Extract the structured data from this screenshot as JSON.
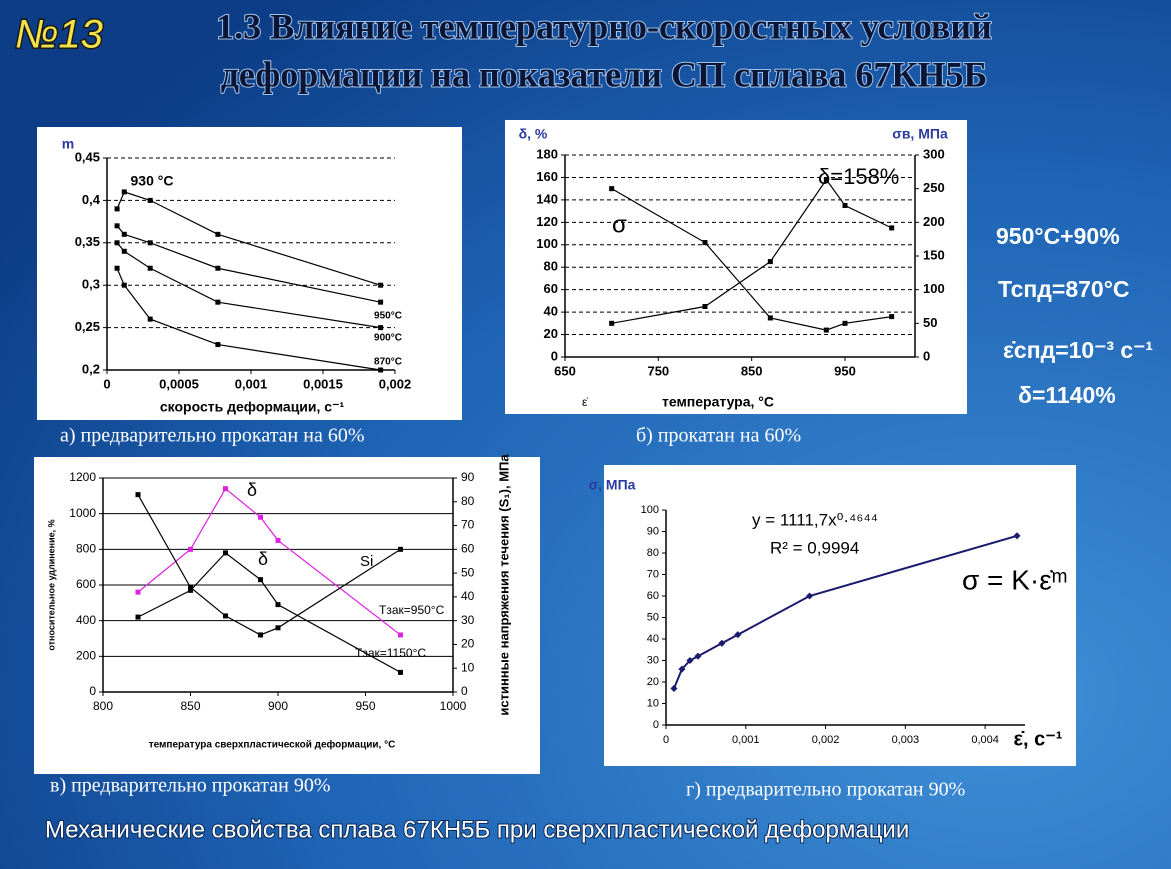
{
  "slide": {
    "number": "№13",
    "title": [
      "1.3 Влияние температурно-скоростных условий",
      "деформации на показатели СП сплава 67КН5Б"
    ],
    "notes": [
      "950°С+90%",
      "Тспд=870°С",
      "ε̇спд=10⁻³ с⁻¹",
      "δ=1140%"
    ],
    "footer": "Механические свойства сплава 67КН5Б при сверхпластической деформации"
  },
  "chart_data": [
    {
      "type": "line",
      "caption": "а) предварительно прокатан на 60%",
      "ylabel": "m",
      "xlabel": "скорость деформации, с⁻¹",
      "x": [
        7e-05,
        0.00012,
        0.0003,
        0.00077,
        0.0019
      ],
      "series": [
        {
          "name": "930 °С",
          "color": "#000000",
          "values": [
            0.39,
            0.41,
            0.4,
            0.36,
            0.3
          ]
        },
        {
          "name": "950°С",
          "color": "#000000",
          "values": [
            0.37,
            0.36,
            0.35,
            0.32,
            0.28
          ]
        },
        {
          "name": "900°С",
          "color": "#000000",
          "values": [
            0.35,
            0.34,
            0.32,
            0.28,
            0.25
          ]
        },
        {
          "name": "870°С",
          "color": "#000000",
          "values": [
            0.32,
            0.3,
            0.26,
            0.23,
            0.2
          ]
        }
      ],
      "xlim": [
        0,
        0.002
      ],
      "xticks": [
        0,
        {
          "value": 0.0005,
          "label": "0,0005"
        },
        {
          "value": 0.001,
          "label": "0,001"
        },
        {
          "value": 0.0015,
          "label": "0,0015"
        },
        {
          "value": 0.002,
          "label": "0,002"
        }
      ],
      "ylim": [
        0.2,
        0.45
      ],
      "yticks": [
        {
          "value": 0.2,
          "label": "0,2"
        },
        {
          "value": 0.25,
          "label": "0,25"
        },
        {
          "value": 0.3,
          "label": "0,3"
        },
        {
          "value": 0.35,
          "label": "0,35"
        },
        {
          "value": 0.4,
          "label": "0,4"
        },
        {
          "value": 0.45,
          "label": "0,45"
        }
      ],
      "grid": true,
      "grid_style": "dashed"
    },
    {
      "type": "line",
      "caption": "б) прокатан на 60%",
      "ylabel": "δ, %",
      "y2label": "σв, МПа",
      "xlabel": "температура, °С",
      "annotations": [
        "δ=158%",
        "σ",
        "ε̇"
      ],
      "x": [
        700,
        800,
        870,
        930,
        950,
        1000
      ],
      "series": [
        {
          "color": "#000000",
          "values": [
            30,
            45,
            85,
            158,
            135,
            115
          ]
        },
        {
          "color": "#000000",
          "axis": "y2",
          "values": [
            250,
            170,
            58,
            40,
            50,
            60
          ]
        }
      ],
      "xlim": [
        650,
        1025
      ],
      "xticks": [
        650,
        750,
        850,
        950
      ],
      "ylim": [
        0,
        180
      ],
      "yticks": [
        0,
        20,
        40,
        60,
        80,
        100,
        120,
        140,
        160,
        180
      ],
      "y2lim": [
        0,
        300
      ],
      "y2ticks": [
        0,
        50,
        100,
        150,
        200,
        250,
        300
      ],
      "grid": true,
      "grid_style": "dashed"
    },
    {
      "type": "line",
      "caption": "в) предварительно прокатан  90%",
      "ylabel": "относительное удлинение, %",
      "y2label": "истинные напряжения течения (S₁), МПа",
      "xlabel": "температура сверхпластической деформации, °С",
      "annotations": [
        "δ",
        "δ",
        "Si",
        "Tзак=950°С",
        "Tзак=1150°С"
      ],
      "x": [
        820,
        850,
        870,
        890,
        900,
        970
      ],
      "series": [
        {
          "color": "#e020e0",
          "values": [
            560,
            800,
            1140,
            980,
            850,
            320
          ]
        },
        {
          "color": "#000000",
          "values": [
            420,
            570,
            780,
            630,
            490,
            110
          ]
        },
        {
          "color": "#000000",
          "axis": "y2",
          "values": [
            83,
            44,
            32,
            24,
            27,
            60
          ]
        }
      ],
      "xlim": [
        800,
        1000
      ],
      "xticks": [
        800,
        850,
        900,
        950,
        1000
      ],
      "ylim": [
        0,
        1200
      ],
      "yticks": [
        0,
        200,
        400,
        600,
        800,
        1000,
        1200
      ],
      "y2lim": [
        0,
        90
      ],
      "y2ticks": [
        0,
        10,
        20,
        30,
        40,
        50,
        60,
        70,
        80,
        90
      ],
      "grid": true,
      "grid_style": "solid"
    },
    {
      "type": "line",
      "caption": "г) предварительно прокатан  90%",
      "ylabel": "σ, МПа",
      "xlabel": "ε̇, c⁻¹",
      "annotations": [
        "y = 1111,7x⁰·⁴⁶⁴⁴",
        "R² = 0,9994",
        "σ = K·ε̇ᵐ"
      ],
      "x": [
        0.0001,
        0.0002,
        0.0003,
        0.0004,
        0.0007,
        0.0009,
        0.0018,
        0.0044
      ],
      "series": [
        {
          "color": "#1a1a6e",
          "values": [
            17,
            26,
            30,
            32,
            38,
            42,
            60,
            88
          ]
        }
      ],
      "xlim": [
        0,
        0.0045
      ],
      "xticks": [
        0,
        {
          "value": 0.001,
          "label": "0,001"
        },
        {
          "value": 0.002,
          "label": "0,002"
        },
        {
          "value": 0.003,
          "label": "0,003"
        },
        {
          "value": 0.004,
          "label": "0,004"
        }
      ],
      "ylim": [
        0,
        100
      ],
      "yticks": [
        0,
        10,
        20,
        30,
        40,
        50,
        60,
        70,
        80,
        90,
        100
      ],
      "grid": false
    }
  ]
}
